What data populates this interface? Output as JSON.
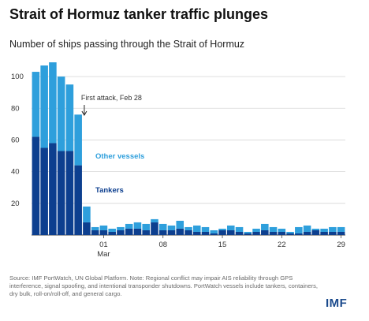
{
  "chart_data": {
    "type": "bar",
    "stacked": true,
    "title": "Strait of Hormuz tanker traffic plunges",
    "subtitle": "Number of ships passing through the Strait of Hormuz",
    "x_ticks": [
      {
        "index": 8,
        "label": "01",
        "sublabel": "Mar"
      },
      {
        "index": 15,
        "label": "08"
      },
      {
        "index": 22,
        "label": "15"
      },
      {
        "index": 29,
        "label": "22"
      },
      {
        "index": 36,
        "label": "29"
      }
    ],
    "ylim": [
      0,
      110
    ],
    "yticks": [
      20,
      40,
      60,
      80,
      100
    ],
    "grid": true,
    "series": [
      {
        "name": "Tankers",
        "color": "#0d3f8f",
        "values": [
          62,
          55,
          58,
          53,
          53,
          44,
          8,
          3,
          3,
          2,
          3,
          4,
          4,
          3,
          8,
          3,
          3,
          4,
          3,
          2,
          2,
          1,
          3,
          3,
          2,
          1,
          2,
          3,
          2,
          2,
          1,
          1,
          2,
          3,
          2,
          2,
          2
        ]
      },
      {
        "name": "Other vessels",
        "color": "#2e9fdc",
        "values": [
          41,
          52,
          51,
          47,
          42,
          32,
          10,
          2,
          3,
          2,
          2,
          3,
          4,
          4,
          2,
          4,
          3,
          5,
          2,
          4,
          3,
          2,
          1,
          3,
          3,
          1,
          2,
          4,
          3,
          2,
          1,
          4,
          4,
          1,
          2,
          3,
          3
        ]
      }
    ],
    "annotation": {
      "text": "First attack, Feb 28",
      "index": 6
    }
  },
  "source_note": "Source: IMF PortWatch, UN Global Platform. Note: Regional conflict may impair AIS reliability through GPS interference, signal spoofing, and intentional transponder shutdowns. PortWatch vessels include tankers, containers, dry bulk, roll-on/roll-off, and general cargo.",
  "logo": "IMF"
}
